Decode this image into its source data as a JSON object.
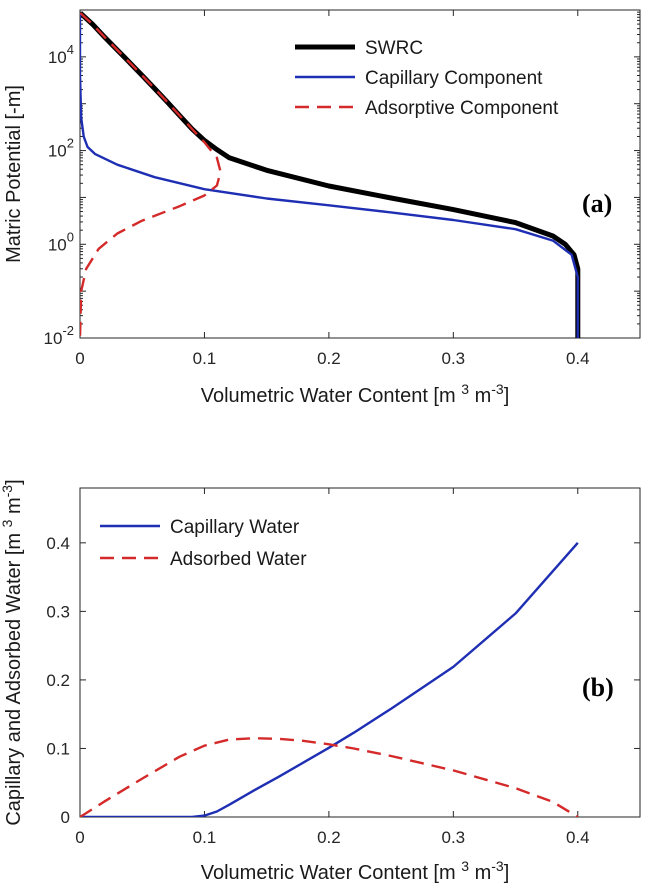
{
  "chart_data": [
    {
      "type": "line",
      "panel_label": "(a)",
      "xlabel": "Volumetric Water Content [m 3 m-3]",
      "ylabel": "Matric Potential [-m]",
      "xlim": [
        0,
        0.45
      ],
      "ylim": [
        0.01,
        100000
      ],
      "y_scale": "log",
      "x_ticks": [
        "0",
        "0.1",
        "0.2",
        "0.3",
        "0.4"
      ],
      "y_ticks": [
        {
          "base": "10",
          "exp": "-2"
        },
        {
          "base": "10",
          "exp": "0"
        },
        {
          "base": "10",
          "exp": "2"
        },
        {
          "base": "10",
          "exp": "4"
        }
      ],
      "grid": false,
      "legend_position": "top-right",
      "series": [
        {
          "name": "SWRC",
          "color": "#000000",
          "style": "solid",
          "points": [
            [
              0.0003,
              86000
            ],
            [
              0.01,
              50000
            ],
            [
              0.02,
              26000
            ],
            [
              0.03,
              14000
            ],
            [
              0.04,
              7500
            ],
            [
              0.05,
              4000
            ],
            [
              0.06,
              2100
            ],
            [
              0.07,
              1100
            ],
            [
              0.08,
              560
            ],
            [
              0.09,
              290
            ],
            [
              0.1,
              165
            ],
            [
              0.11,
              105
            ],
            [
              0.12,
              70
            ],
            [
              0.15,
              38
            ],
            [
              0.2,
              17.5
            ],
            [
              0.25,
              9.7
            ],
            [
              0.3,
              5.5
            ],
            [
              0.35,
              2.9
            ],
            [
              0.38,
              1.5
            ],
            [
              0.39,
              1.0
            ],
            [
              0.397,
              0.6
            ],
            [
              0.4,
              0.3
            ],
            [
              0.4,
              0.01
            ]
          ]
        },
        {
          "name": "Capillary Component",
          "color": "#1f2fb4",
          "style": "solid",
          "points": [
            [
              0.0,
              86000
            ],
            [
              0.0,
              4000
            ],
            [
              0.001,
              500
            ],
            [
              0.003,
              200
            ],
            [
              0.006,
              120
            ],
            [
              0.012,
              85
            ],
            [
              0.03,
              50
            ],
            [
              0.06,
              27
            ],
            [
              0.1,
              15
            ],
            [
              0.15,
              9.5
            ],
            [
              0.2,
              6.8
            ],
            [
              0.25,
              4.8
            ],
            [
              0.3,
              3.3
            ],
            [
              0.35,
              2.1
            ],
            [
              0.38,
              1.2
            ],
            [
              0.395,
              0.6
            ],
            [
              0.4,
              0.2
            ],
            [
              0.4,
              0.01
            ]
          ]
        },
        {
          "name": "Adsorptive Component",
          "color": "#d42a2a",
          "style": "dashed",
          "points": [
            [
              0.0003,
              86000
            ],
            [
              0.01,
              50000
            ],
            [
              0.02,
              26000
            ],
            [
              0.03,
              14000
            ],
            [
              0.04,
              7500
            ],
            [
              0.05,
              4000
            ],
            [
              0.06,
              2100
            ],
            [
              0.07,
              1100
            ],
            [
              0.08,
              560
            ],
            [
              0.09,
              290
            ],
            [
              0.1,
              150
            ],
            [
              0.11,
              70
            ],
            [
              0.113,
              35
            ],
            [
              0.11,
              18
            ],
            [
              0.1,
              11
            ],
            [
              0.08,
              6.5
            ],
            [
              0.05,
              3.2
            ],
            [
              0.03,
              1.7
            ],
            [
              0.015,
              0.8
            ],
            [
              0.005,
              0.3
            ],
            [
              0.001,
              0.1
            ],
            [
              0.0,
              0.01
            ]
          ]
        }
      ]
    },
    {
      "type": "line",
      "panel_label": "(b)",
      "xlabel": "Volumetric Water Content [m 3 m-3]",
      "ylabel": "Capillary and Adsorbed Water [m 3 m-3]",
      "xlim": [
        0,
        0.45
      ],
      "ylim": [
        0,
        0.48
      ],
      "x_ticks": [
        "0",
        "0.1",
        "0.2",
        "0.3",
        "0.4"
      ],
      "y_ticks": [
        "0",
        "0.1",
        "0.2",
        "0.3",
        "0.4"
      ],
      "grid": false,
      "legend_position": "top-left",
      "series": [
        {
          "name": "Capillary Water",
          "color": "#1f2fb4",
          "style": "solid",
          "points": [
            [
              0,
              0
            ],
            [
              0.09,
              0
            ],
            [
              0.1,
              0.002
            ],
            [
              0.11,
              0.008
            ],
            [
              0.12,
              0.018
            ],
            [
              0.14,
              0.039
            ],
            [
              0.16,
              0.059
            ],
            [
              0.18,
              0.08
            ],
            [
              0.2,
              0.101
            ],
            [
              0.22,
              0.123
            ],
            [
              0.25,
              0.158
            ],
            [
              0.3,
              0.219
            ],
            [
              0.35,
              0.297
            ],
            [
              0.4,
              0.4
            ]
          ]
        },
        {
          "name": "Adsorbed Water",
          "color": "#d42a2a",
          "style": "dashed",
          "points": [
            [
              0,
              0
            ],
            [
              0.02,
              0.023
            ],
            [
              0.05,
              0.056
            ],
            [
              0.08,
              0.088
            ],
            [
              0.1,
              0.104
            ],
            [
              0.12,
              0.113
            ],
            [
              0.14,
              0.115
            ],
            [
              0.16,
              0.114
            ],
            [
              0.18,
              0.111
            ],
            [
              0.2,
              0.106
            ],
            [
              0.22,
              0.1
            ],
            [
              0.25,
              0.089
            ],
            [
              0.3,
              0.068
            ],
            [
              0.35,
              0.042
            ],
            [
              0.38,
              0.022
            ],
            [
              0.4,
              0.0
            ]
          ]
        }
      ]
    }
  ]
}
